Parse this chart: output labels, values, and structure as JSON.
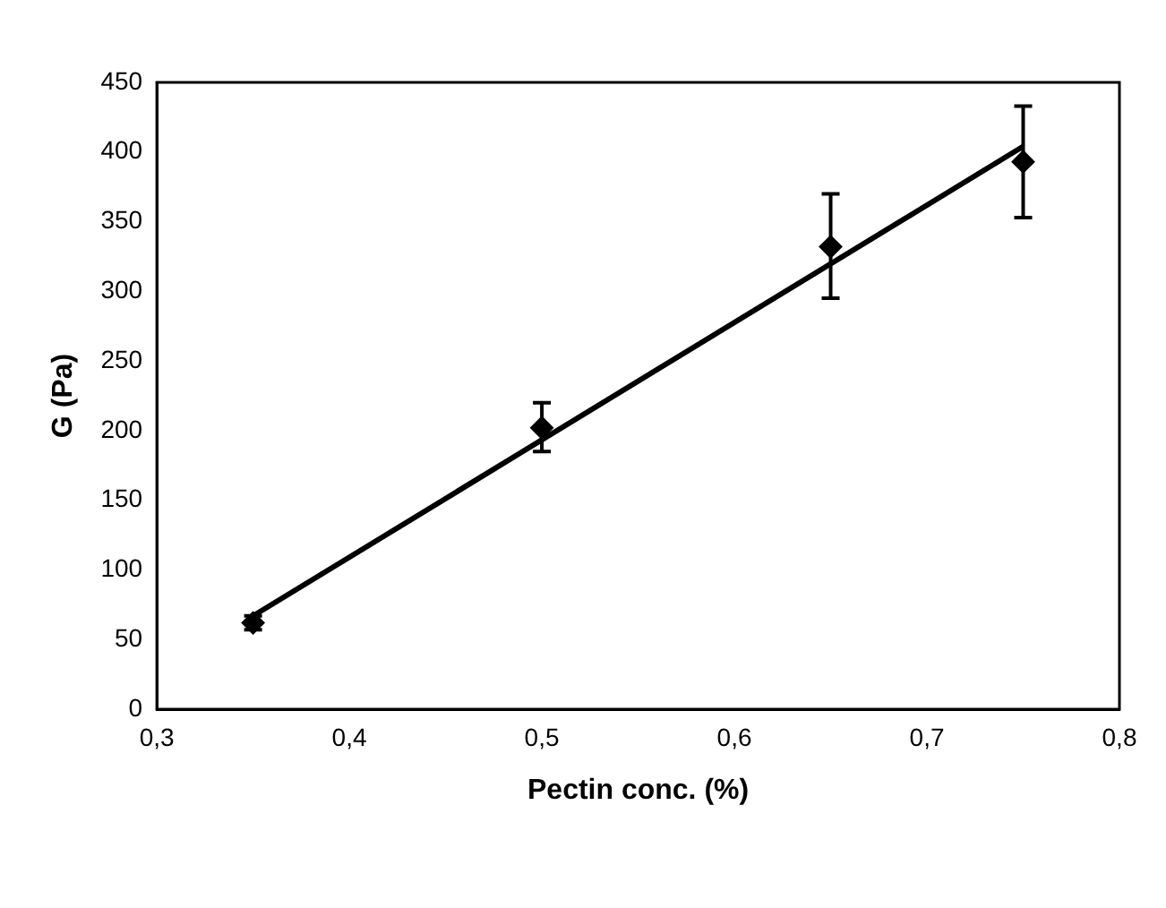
{
  "chart_data": {
    "type": "scatter",
    "xlabel": "Pectin conc. (%)",
    "ylabel": "G (Pa)",
    "xlim": [
      0.3,
      0.8
    ],
    "xticks": [
      {
        "value": 0.3,
        "label": "0,3"
      },
      {
        "value": 0.4,
        "label": "0,4"
      },
      {
        "value": 0.5,
        "label": "0,5"
      },
      {
        "value": 0.6,
        "label": "0,6"
      },
      {
        "value": 0.7,
        "label": "0,7"
      },
      {
        "value": 0.8,
        "label": "0,8"
      }
    ],
    "ylim": [
      0,
      450
    ],
    "yticks": [
      0,
      50,
      100,
      150,
      200,
      250,
      300,
      350,
      400,
      450
    ],
    "grid": false,
    "legend": false,
    "series": [
      {
        "type": "scatter",
        "color": "#000000",
        "marker": "diamond",
        "x": [
          0.35,
          0.5,
          0.65,
          0.75
        ],
        "values": [
          62,
          202,
          332,
          393
        ],
        "errors": [
          5,
          [
            185,
            220
          ],
          [
            295,
            370
          ],
          [
            353,
            433
          ]
        ]
      },
      {
        "type": "line",
        "color": "#000000",
        "marker": "none",
        "line_style": "solid",
        "x": [
          0.35,
          0.75
        ],
        "values": [
          67,
          404
        ]
      }
    ]
  }
}
